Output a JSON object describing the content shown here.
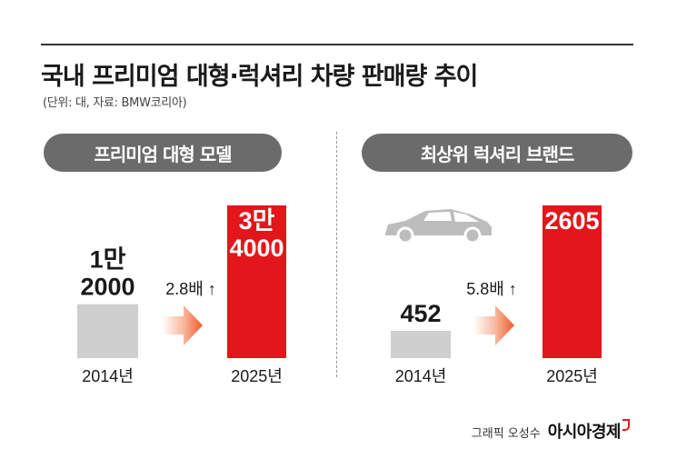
{
  "title": "국내 프리미엄 대형·럭셔리 차량 판매량 추이",
  "subtitle": "(단위: 대, 자료: BMW코리아)",
  "colors": {
    "before": "#cfcfcf",
    "after": "#e3161b",
    "pill": "#6b6b6b"
  },
  "icons": {
    "car": "car-icon",
    "arrow": "arrow-right-icon"
  },
  "chart_data": [
    {
      "type": "bar",
      "title": "프리미엄 대형 모델",
      "categories": [
        "2014년",
        "2025년"
      ],
      "values": [
        12000,
        34000
      ],
      "value_labels": [
        [
          "1만",
          "2000"
        ],
        [
          "3만",
          "4000"
        ]
      ],
      "growth_label": "2.8배 ↑"
    },
    {
      "type": "bar",
      "title": "최상위 럭셔리 브랜드",
      "categories": [
        "2014년",
        "2025년"
      ],
      "values": [
        452,
        2605
      ],
      "value_labels": [
        [
          "452"
        ],
        [
          "2605"
        ]
      ],
      "growth_label": "5.8배 ↑"
    }
  ],
  "footer": {
    "credit": "그래픽 오성수",
    "brand": "아시아경제"
  }
}
